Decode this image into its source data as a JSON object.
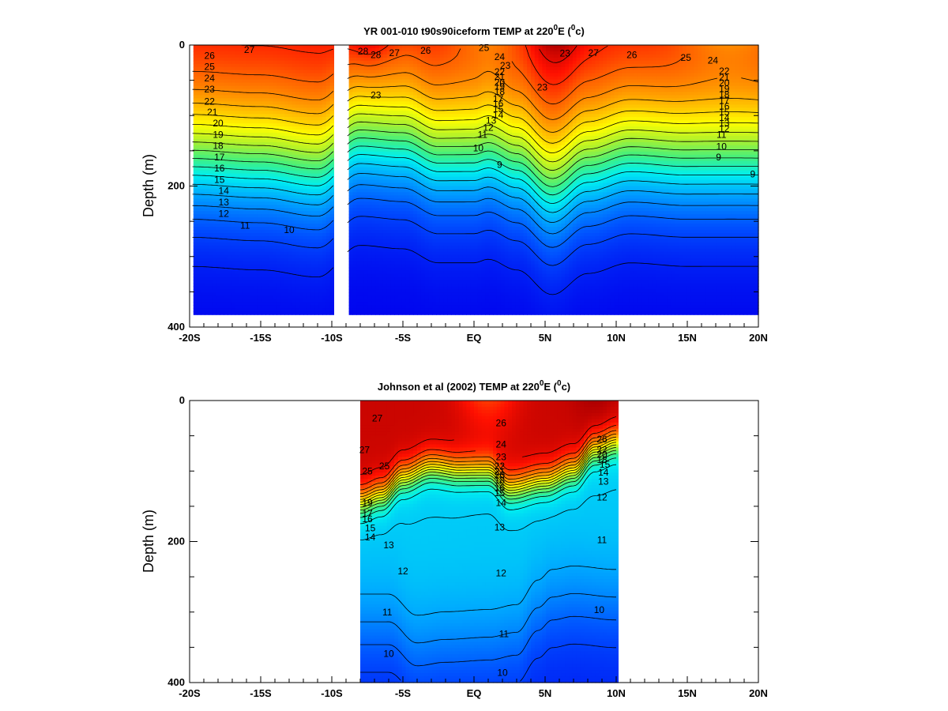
{
  "chart_data": [
    {
      "type": "heatmap",
      "subtype": "depth-latitude temperature section with contours",
      "title": {
        "pre": "YR 001-010 t90s90iceform TEMP at 220",
        "sup1": "0",
        "mid": "E (",
        "sup2": "0",
        "post": "c)"
      },
      "ylabel": "Depth (m)",
      "xlabel": "",
      "x_ticks": [
        -20,
        -15,
        -10,
        -5,
        0,
        5,
        10,
        15,
        20
      ],
      "x_tick_labels": [
        "-20S",
        "-15S",
        "-10S",
        "-5S",
        "EQ",
        "5N",
        "10N",
        "15N",
        "20N"
      ],
      "y_ticks": [
        0,
        200,
        400
      ],
      "y_tick_labels": [
        "0",
        "200",
        "400"
      ],
      "xlim": [
        -20,
        20
      ],
      "ylim": [
        400,
        0
      ],
      "y_inverted": true,
      "data_mask": [
        {
          "lat_min": -19.8,
          "lat_max": -9.9,
          "depth_max": 380
        },
        {
          "lat_min": -8.9,
          "lat_max": 20,
          "depth_max": 380
        }
      ],
      "colorscale": {
        "min": 8,
        "max": 29,
        "stops": [
          {
            "t": 8,
            "color": "#0000ee"
          },
          {
            "t": 10.5,
            "color": "#0050ff"
          },
          {
            "t": 13,
            "color": "#00a8ff"
          },
          {
            "t": 15,
            "color": "#00f0f0"
          },
          {
            "t": 17,
            "color": "#40f080"
          },
          {
            "t": 19,
            "color": "#a8f030"
          },
          {
            "t": 21,
            "color": "#ffff00"
          },
          {
            "t": 23,
            "color": "#ffb000"
          },
          {
            "t": 25,
            "color": "#ff6000"
          },
          {
            "t": 26.5,
            "color": "#ff1000"
          },
          {
            "t": 28,
            "color": "#b00000"
          },
          {
            "t": 29,
            "color": "#800000"
          }
        ]
      },
      "model": {
        "T_surface": 27.0,
        "T_deep": 8.0,
        "surface_bumps": [
          {
            "lat": -7.5,
            "amp": 1.6,
            "width": 1.6
          },
          {
            "lat": 5.8,
            "amp": 1.5,
            "width": 1.9
          },
          {
            "lat": 1.0,
            "amp": -1.5,
            "width": 2.5
          },
          {
            "lat": 18.0,
            "amp": -2.0,
            "width": 3.5
          }
        ],
        "thermocline_nodes": [
          [
            -20,
            155
          ],
          [
            -15,
            160
          ],
          [
            -11,
            170
          ],
          [
            -8,
            125
          ],
          [
            -5,
            130
          ],
          [
            -2.5,
            150
          ],
          [
            0,
            150
          ],
          [
            1,
            145
          ],
          [
            3,
            160
          ],
          [
            5.5,
            195
          ],
          [
            8,
            165
          ],
          [
            11,
            150
          ],
          [
            15,
            155
          ],
          [
            20,
            155
          ]
        ],
        "thermocline_thickness": 110
      },
      "contour_levels": [
        9,
        10,
        11,
        12,
        13,
        14,
        15,
        16,
        17,
        18,
        19,
        20,
        21,
        22,
        23,
        24,
        25,
        26,
        27,
        28
      ],
      "contour_labels": [
        {
          "text": "27",
          "lat": -15.8,
          "depth": 7
        },
        {
          "text": "26",
          "lat": -18.6,
          "depth": 15
        },
        {
          "text": "25",
          "lat": -18.6,
          "depth": 31
        },
        {
          "text": "24",
          "lat": -18.6,
          "depth": 47
        },
        {
          "text": "23",
          "lat": -18.6,
          "depth": 63
        },
        {
          "text": "22",
          "lat": -18.6,
          "depth": 80
        },
        {
          "text": "21",
          "lat": -18.4,
          "depth": 95
        },
        {
          "text": "20",
          "lat": -18.0,
          "depth": 111
        },
        {
          "text": "19",
          "lat": -18.0,
          "depth": 127
        },
        {
          "text": "18",
          "lat": -18.0,
          "depth": 143
        },
        {
          "text": "17",
          "lat": -17.9,
          "depth": 159
        },
        {
          "text": "16",
          "lat": -17.9,
          "depth": 175
        },
        {
          "text": "15",
          "lat": -17.9,
          "depth": 191
        },
        {
          "text": "14",
          "lat": -17.6,
          "depth": 207
        },
        {
          "text": "13",
          "lat": -17.6,
          "depth": 223
        },
        {
          "text": "12",
          "lat": -17.6,
          "depth": 239
        },
        {
          "text": "11",
          "lat": -16.1,
          "depth": 256
        },
        {
          "text": "10",
          "lat": -13.0,
          "depth": 262
        },
        {
          "text": "28",
          "lat": -7.8,
          "depth": 9
        },
        {
          "text": "28",
          "lat": -6.9,
          "depth": 14
        },
        {
          "text": "27",
          "lat": -5.6,
          "depth": 11
        },
        {
          "text": "26",
          "lat": -3.4,
          "depth": 8
        },
        {
          "text": "25",
          "lat": 0.7,
          "depth": 4
        },
        {
          "text": "24",
          "lat": 1.8,
          "depth": 17
        },
        {
          "text": "23",
          "lat": 2.2,
          "depth": 29
        },
        {
          "text": "22",
          "lat": 1.8,
          "depth": 38
        },
        {
          "text": "21",
          "lat": 1.8,
          "depth": 45
        },
        {
          "text": "20",
          "lat": 1.8,
          "depth": 53
        },
        {
          "text": "19",
          "lat": 1.8,
          "depth": 59
        },
        {
          "text": "18",
          "lat": 1.8,
          "depth": 66
        },
        {
          "text": "17",
          "lat": 1.7,
          "depth": 76
        },
        {
          "text": "16",
          "lat": 1.7,
          "depth": 83
        },
        {
          "text": "15",
          "lat": 1.7,
          "depth": 91
        },
        {
          "text": "14",
          "lat": 1.7,
          "depth": 99
        },
        {
          "text": "13",
          "lat": 1.2,
          "depth": 107
        },
        {
          "text": "12",
          "lat": 1.0,
          "depth": 117
        },
        {
          "text": "11",
          "lat": 0.6,
          "depth": 127
        },
        {
          "text": "10",
          "lat": 0.3,
          "depth": 146
        },
        {
          "text": "9",
          "lat": 1.8,
          "depth": 170
        },
        {
          "text": "23",
          "lat": 4.8,
          "depth": 60
        },
        {
          "text": "23",
          "lat": -6.9,
          "depth": 71
        },
        {
          "text": "23",
          "lat": 6.4,
          "depth": 12
        },
        {
          "text": "27",
          "lat": 8.4,
          "depth": 11
        },
        {
          "text": "26",
          "lat": 11.1,
          "depth": 14
        },
        {
          "text": "25",
          "lat": 14.9,
          "depth": 18
        },
        {
          "text": "24",
          "lat": 16.8,
          "depth": 22
        },
        {
          "text": "22",
          "lat": 17.6,
          "depth": 37
        },
        {
          "text": "21",
          "lat": 17.6,
          "depth": 46
        },
        {
          "text": "20",
          "lat": 17.6,
          "depth": 54
        },
        {
          "text": "19",
          "lat": 17.6,
          "depth": 62
        },
        {
          "text": "18",
          "lat": 17.6,
          "depth": 70
        },
        {
          "text": "17",
          "lat": 17.6,
          "depth": 79
        },
        {
          "text": "16",
          "lat": 17.6,
          "depth": 87
        },
        {
          "text": "15",
          "lat": 17.6,
          "depth": 95
        },
        {
          "text": "14",
          "lat": 17.6,
          "depth": 103
        },
        {
          "text": "13",
          "lat": 17.6,
          "depth": 111
        },
        {
          "text": "12",
          "lat": 17.6,
          "depth": 119
        },
        {
          "text": "11",
          "lat": 17.4,
          "depth": 127
        },
        {
          "text": "10",
          "lat": 17.4,
          "depth": 144
        },
        {
          "text": "9",
          "lat": 17.2,
          "depth": 159
        },
        {
          "text": "9",
          "lat": 19.6,
          "depth": 183
        }
      ]
    },
    {
      "type": "heatmap",
      "subtype": "depth-latitude temperature section with contours",
      "title": {
        "pre": "Johnson et al (2002) TEMP at 220",
        "sup1": "0",
        "mid": "E (",
        "sup2": "0",
        "post": "c)"
      },
      "ylabel": "Depth (m)",
      "xlabel": "",
      "x_ticks": [
        -20,
        -15,
        -10,
        -5,
        0,
        5,
        10,
        15,
        20
      ],
      "x_tick_labels": [
        "-20S",
        "-15S",
        "-10S",
        "-5S",
        "EQ",
        "5N",
        "10N",
        "15N",
        "20N"
      ],
      "y_ticks": [
        0,
        200,
        400
      ],
      "y_tick_labels": [
        "0",
        "200",
        "400"
      ],
      "xlim": [
        -20,
        20
      ],
      "ylim": [
        400,
        0
      ],
      "y_inverted": true,
      "data_mask": [
        {
          "lat_min": -8.0,
          "lat_max": 10.0,
          "depth_max": 400
        }
      ],
      "colorscale": {
        "min": 8,
        "max": 29,
        "stops": [
          {
            "t": 8,
            "color": "#0000ee"
          },
          {
            "t": 10.5,
            "color": "#0050ff"
          },
          {
            "t": 13,
            "color": "#00a8ff"
          },
          {
            "t": 15,
            "color": "#00f0f0"
          },
          {
            "t": 17,
            "color": "#40f080"
          },
          {
            "t": 19,
            "color": "#a8f030"
          },
          {
            "t": 21,
            "color": "#ffff00"
          },
          {
            "t": 23,
            "color": "#ffb000"
          },
          {
            "t": 25,
            "color": "#ff6000"
          },
          {
            "t": 26.5,
            "color": "#ff1000"
          },
          {
            "t": 28,
            "color": "#b00000"
          },
          {
            "t": 29,
            "color": "#800000"
          }
        ]
      },
      "model": {
        "T_surface": 27.5,
        "T_mid": 14.0,
        "T_deep": 9.0,
        "surface_bumps": [
          {
            "lat": 8.5,
            "amp": 0.6,
            "width": 1.5
          },
          {
            "lat": 1.0,
            "amp": -1.8,
            "width": 2.0
          }
        ],
        "thermocline_nodes": [
          [
            -8,
            145
          ],
          [
            -6.5,
            135
          ],
          [
            -5,
            110
          ],
          [
            -3,
            95
          ],
          [
            -1,
            100
          ],
          [
            1,
            100
          ],
          [
            2.5,
            125
          ],
          [
            5,
            115
          ],
          [
            7,
            100
          ],
          [
            8.5,
            70
          ],
          [
            10,
            60
          ]
        ],
        "thermocline_thickness": 70,
        "deep_nodes": [
          [
            -8,
            330
          ],
          [
            -6,
            330
          ],
          [
            -4,
            360
          ],
          [
            -2,
            355
          ],
          [
            1,
            352
          ],
          [
            3,
            345
          ],
          [
            4.5,
            310
          ],
          [
            5.5,
            295
          ],
          [
            7,
            290
          ],
          [
            10,
            295
          ]
        ],
        "deep_thickness": 160
      },
      "contour_levels": [
        10,
        11,
        12,
        13,
        14,
        15,
        16,
        17,
        18,
        19,
        20,
        21,
        22,
        23,
        24,
        25,
        26,
        27
      ],
      "contour_labels": [
        {
          "text": "27",
          "lat": -6.8,
          "depth": 25
        },
        {
          "text": "27",
          "lat": -7.7,
          "depth": 70
        },
        {
          "text": "26",
          "lat": 1.9,
          "depth": 32
        },
        {
          "text": "25",
          "lat": -6.3,
          "depth": 93
        },
        {
          "text": "25",
          "lat": -7.5,
          "depth": 100
        },
        {
          "text": "24",
          "lat": 1.9,
          "depth": 62
        },
        {
          "text": "23",
          "lat": 1.9,
          "depth": 80
        },
        {
          "text": "22",
          "lat": 1.8,
          "depth": 93
        },
        {
          "text": "21",
          "lat": 1.8,
          "depth": 101
        },
        {
          "text": "20",
          "lat": 1.8,
          "depth": 106
        },
        {
          "text": "18",
          "lat": 1.8,
          "depth": 113
        },
        {
          "text": "16",
          "lat": 1.8,
          "depth": 124
        },
        {
          "text": "15",
          "lat": 1.8,
          "depth": 131
        },
        {
          "text": "14",
          "lat": 1.9,
          "depth": 145
        },
        {
          "text": "13",
          "lat": 1.8,
          "depth": 180
        },
        {
          "text": "12",
          "lat": 1.9,
          "depth": 245
        },
        {
          "text": "11",
          "lat": 2.1,
          "depth": 331
        },
        {
          "text": "10",
          "lat": 2.0,
          "depth": 386
        },
        {
          "text": "19",
          "lat": -7.5,
          "depth": 145
        },
        {
          "text": "17",
          "lat": -7.5,
          "depth": 160
        },
        {
          "text": "16",
          "lat": -7.5,
          "depth": 168
        },
        {
          "text": "15",
          "lat": -7.3,
          "depth": 181
        },
        {
          "text": "14",
          "lat": -7.3,
          "depth": 194
        },
        {
          "text": "13",
          "lat": -6.0,
          "depth": 205
        },
        {
          "text": "12",
          "lat": -5.0,
          "depth": 242
        },
        {
          "text": "11",
          "lat": -6.1,
          "depth": 300
        },
        {
          "text": "10",
          "lat": -6.0,
          "depth": 359
        },
        {
          "text": "26",
          "lat": 9.0,
          "depth": 55
        },
        {
          "text": "22",
          "lat": 9.0,
          "depth": 70
        },
        {
          "text": "20",
          "lat": 9.0,
          "depth": 77
        },
        {
          "text": "18",
          "lat": 9.0,
          "depth": 84
        },
        {
          "text": "15",
          "lat": 9.2,
          "depth": 91
        },
        {
          "text": "14",
          "lat": 9.1,
          "depth": 102
        },
        {
          "text": "13",
          "lat": 9.1,
          "depth": 115
        },
        {
          "text": "12",
          "lat": 9.0,
          "depth": 137
        },
        {
          "text": "11",
          "lat": 9.0,
          "depth": 198
        },
        {
          "text": "10",
          "lat": 8.8,
          "depth": 297
        }
      ]
    }
  ]
}
